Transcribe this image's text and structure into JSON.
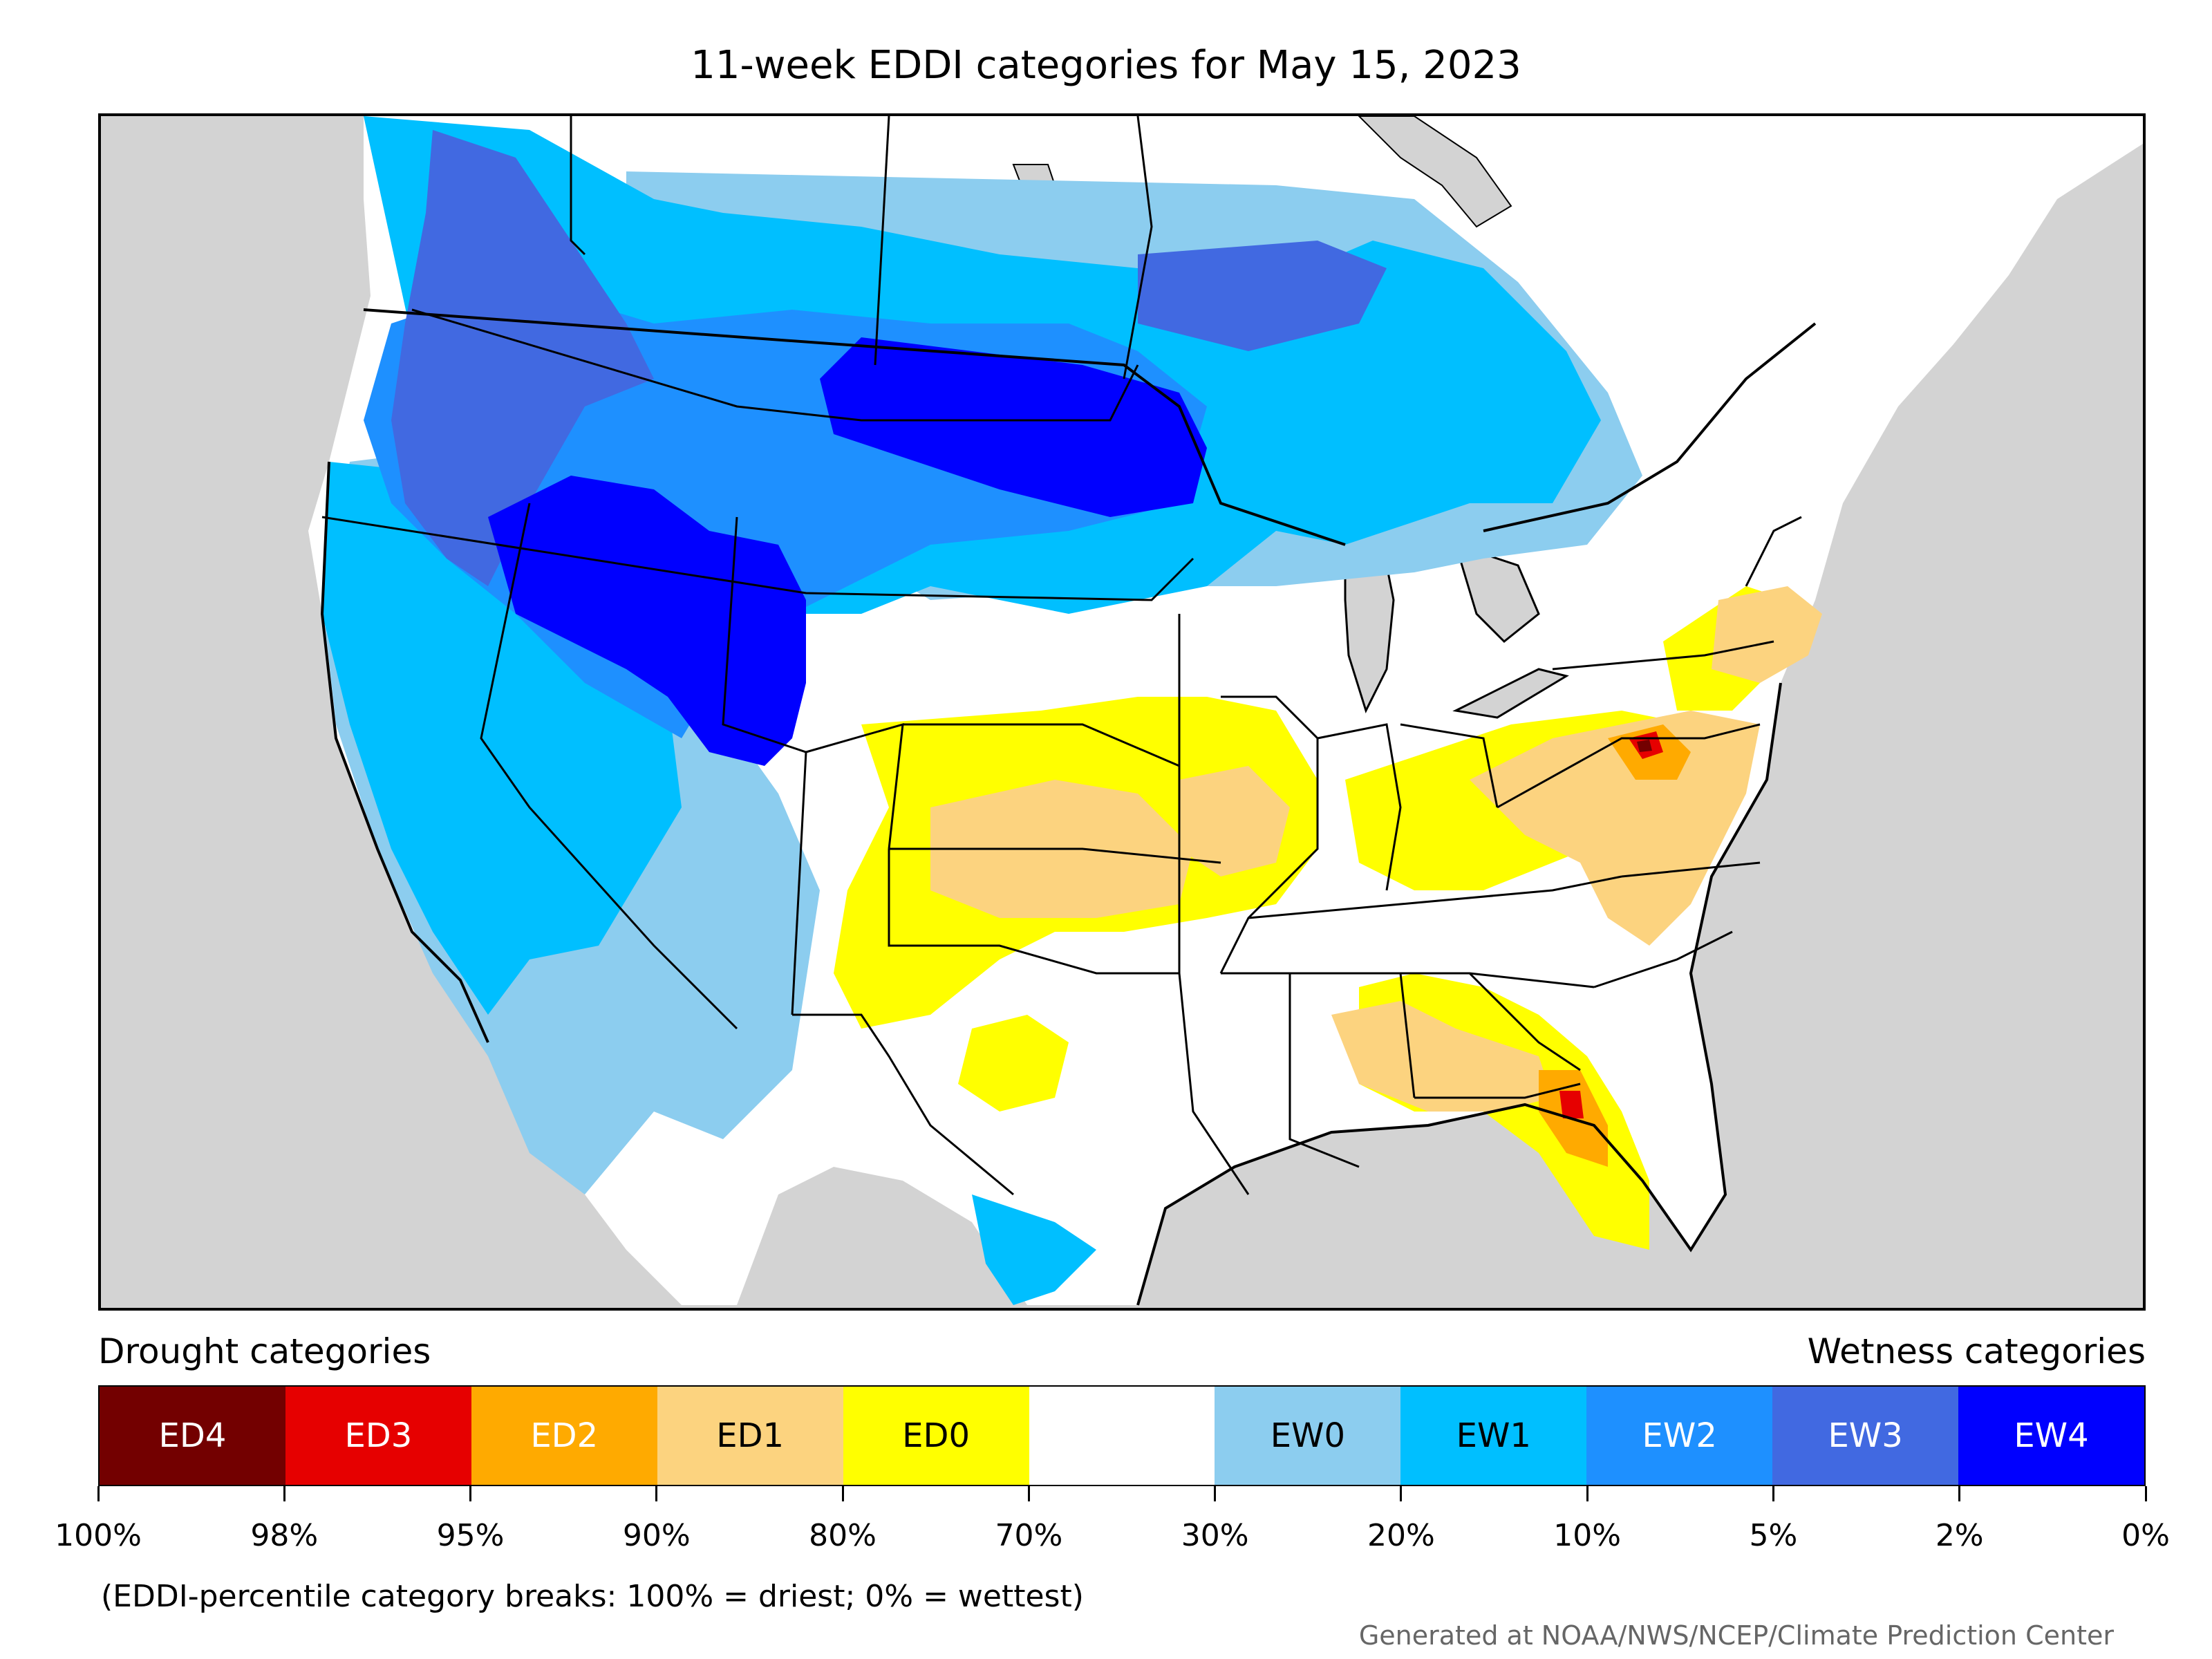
{
  "title": "11-week EDDI categories for May 15, 2023",
  "legend": {
    "drought_heading": "Drought categories",
    "wetness_heading": "Wetness categories",
    "categories": [
      {
        "label": "ED4",
        "color": "#730000",
        "text_color": "#ffffff"
      },
      {
        "label": "ED3",
        "color": "#e60000",
        "text_color": "#ffffff"
      },
      {
        "label": "ED2",
        "color": "#ffaa00",
        "text_color": "#ffffff"
      },
      {
        "label": "ED1",
        "color": "#fcd37f",
        "text_color": "#000000"
      },
      {
        "label": "ED0",
        "color": "#ffff00",
        "text_color": "#000000"
      },
      {
        "label": "",
        "color": "#ffffff",
        "text_color": "#000000"
      },
      {
        "label": "EW0",
        "color": "#8ccdef",
        "text_color": "#000000"
      },
      {
        "label": "EW1",
        "color": "#00bfff",
        "text_color": "#000000"
      },
      {
        "label": "EW2",
        "color": "#1e90ff",
        "text_color": "#ffffff"
      },
      {
        "label": "EW3",
        "color": "#4169e1",
        "text_color": "#ffffff"
      },
      {
        "label": "EW4",
        "color": "#0000ff",
        "text_color": "#ffffff"
      }
    ],
    "tick_labels": [
      "100%",
      "98%",
      "95%",
      "90%",
      "80%",
      "70%",
      "30%",
      "20%",
      "10%",
      "5%",
      "2%",
      "0%"
    ]
  },
  "footnote": "(EDDI-percentile category breaks: 100% = driest; 0% = wettest)",
  "credit": "Generated at NOAA/NWS/NCEP/Climate Prediction Center",
  "map": {
    "background_color": "#d3d3d3",
    "regions": [
      {
        "name": "Pacific Northwest",
        "category": "EW3"
      },
      {
        "name": "Idaho / Western Wyoming / Northern Utah",
        "category": "EW4"
      },
      {
        "name": "North Dakota",
        "category": "EW4"
      },
      {
        "name": "Montana / Southern Canada",
        "category": "EW1"
      },
      {
        "name": "California / Nevada",
        "category": "EW1"
      },
      {
        "name": "Kansas / Oklahoma Panhandle",
        "category": "ED1"
      },
      {
        "name": "Missouri / Illinois",
        "category": "ED0"
      },
      {
        "name": "Virginia / Maryland",
        "category": "ED2"
      },
      {
        "name": "Florida Peninsula",
        "category": "ED2"
      },
      {
        "name": "Northeast Coast",
        "category": "ED1"
      }
    ]
  }
}
